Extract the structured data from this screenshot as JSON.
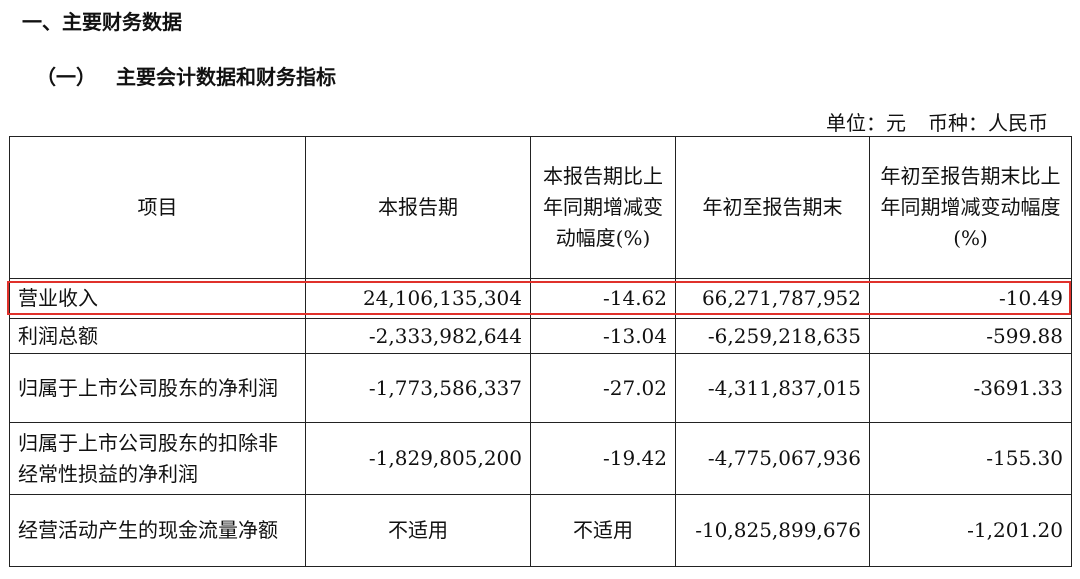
{
  "section_title": "一、主要财务数据",
  "subsection_title_num": "（一）",
  "subsection_title_text": "主要会计数据和财务指标",
  "unit_label": "单位：元",
  "currency_label": "币种：人民币",
  "columns": [
    "项目",
    "本报告期",
    "本报告期比上年同期增减变动幅度(%)",
    "年初至报告期末",
    "年初至报告期末比上年同期增减变动幅度(%)"
  ],
  "rows": [
    {
      "item": "营业收入",
      "current": "24,106,135,304",
      "current_change": "-14.62",
      "ytd": "66,271,787,952",
      "ytd_change": "-10.49"
    },
    {
      "item": "利润总额",
      "current": "-2,333,982,644",
      "current_change": "-13.04",
      "ytd": "-6,259,218,635",
      "ytd_change": "-599.88"
    },
    {
      "item": "归属于上市公司股东的净利润",
      "current": "-1,773,586,337",
      "current_change": "-27.02",
      "ytd": "-4,311,837,015",
      "ytd_change": "-3691.33"
    },
    {
      "item": "归属于上市公司股东的扣除非经常性损益的净利润",
      "current": "-1,829,805,200",
      "current_change": "-19.42",
      "ytd": "-4,775,067,936",
      "ytd_change": "-155.30"
    },
    {
      "item": "经营活动产生的现金流量净额",
      "current": "不适用",
      "current_change": "不适用",
      "ytd": "-10,825,899,676",
      "ytd_change": "-1,201.20"
    }
  ],
  "highlight_color": "#e0312b"
}
